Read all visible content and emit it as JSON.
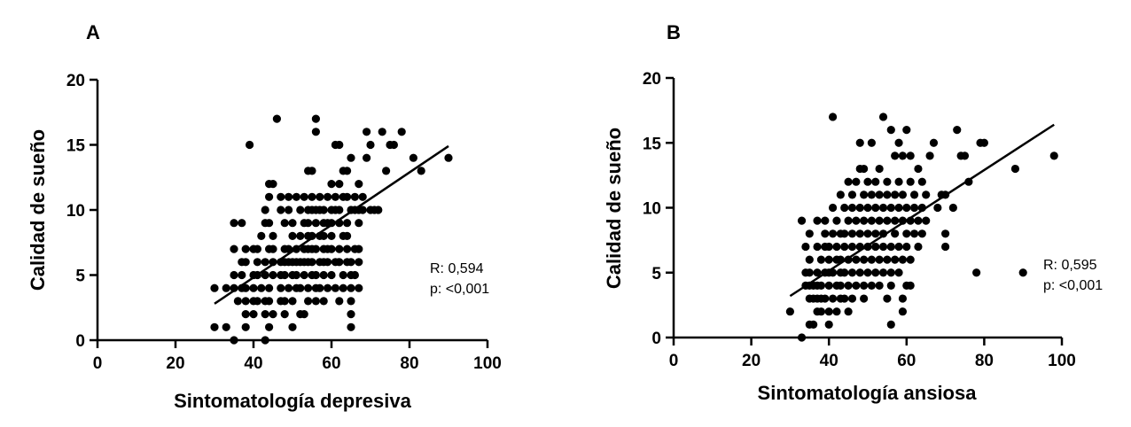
{
  "chart_data": [
    {
      "type": "scatter",
      "panel": "A",
      "xlabel": "Sintomatología depresiva",
      "ylabel": "Calidad de sueño",
      "xlim": [
        0,
        100
      ],
      "ylim": [
        0,
        20
      ],
      "xticks": [
        "0",
        "20",
        "40",
        "60",
        "80",
        "100"
      ],
      "yticks": [
        "0",
        "5",
        "10",
        "15",
        "20"
      ],
      "annotations": [
        "R: 0,594",
        "p: <0,001"
      ],
      "regression_line": {
        "x": [
          30,
          90
        ],
        "y": [
          2.8,
          14.9
        ]
      },
      "points": [
        [
          30,
          1
        ],
        [
          30,
          4
        ],
        [
          33,
          1
        ],
        [
          33,
          4
        ],
        [
          35,
          0
        ],
        [
          35,
          4
        ],
        [
          35,
          5
        ],
        [
          35,
          7
        ],
        [
          35,
          9
        ],
        [
          36,
          3
        ],
        [
          37,
          4
        ],
        [
          37,
          5
        ],
        [
          37,
          6
        ],
        [
          37,
          9
        ],
        [
          38,
          1
        ],
        [
          38,
          2
        ],
        [
          38,
          3
        ],
        [
          38,
          4
        ],
        [
          38,
          6
        ],
        [
          38,
          7
        ],
        [
          39,
          15
        ],
        [
          40,
          2
        ],
        [
          40,
          3
        ],
        [
          40,
          4
        ],
        [
          40,
          5
        ],
        [
          40,
          7
        ],
        [
          41,
          3
        ],
        [
          41,
          5
        ],
        [
          41,
          6
        ],
        [
          41,
          7
        ],
        [
          42,
          4
        ],
        [
          42,
          8
        ],
        [
          43,
          0
        ],
        [
          43,
          2
        ],
        [
          43,
          3
        ],
        [
          43,
          5
        ],
        [
          43,
          6
        ],
        [
          43,
          9
        ],
        [
          43,
          10
        ],
        [
          44,
          1
        ],
        [
          44,
          3
        ],
        [
          44,
          4
        ],
        [
          44,
          7
        ],
        [
          44,
          9
        ],
        [
          44,
          11
        ],
        [
          44,
          12
        ],
        [
          45,
          2
        ],
        [
          45,
          5
        ],
        [
          45,
          6
        ],
        [
          45,
          7
        ],
        [
          45,
          8
        ],
        [
          45,
          12
        ],
        [
          46,
          17
        ],
        [
          47,
          3
        ],
        [
          47,
          4
        ],
        [
          47,
          5
        ],
        [
          47,
          6
        ],
        [
          47,
          10
        ],
        [
          47,
          11
        ],
        [
          48,
          2
        ],
        [
          48,
          3
        ],
        [
          48,
          5
        ],
        [
          48,
          6
        ],
        [
          48,
          7
        ],
        [
          48,
          9
        ],
        [
          49,
          4
        ],
        [
          49,
          6
        ],
        [
          49,
          7
        ],
        [
          49,
          10
        ],
        [
          49,
          11
        ],
        [
          50,
          1
        ],
        [
          50,
          3
        ],
        [
          50,
          5
        ],
        [
          50,
          6
        ],
        [
          50,
          8
        ],
        [
          50,
          9
        ],
        [
          51,
          4
        ],
        [
          51,
          5
        ],
        [
          51,
          6
        ],
        [
          51,
          7
        ],
        [
          51,
          11
        ],
        [
          52,
          2
        ],
        [
          52,
          4
        ],
        [
          52,
          6
        ],
        [
          52,
          8
        ],
        [
          52,
          10
        ],
        [
          53,
          2
        ],
        [
          53,
          5
        ],
        [
          53,
          6
        ],
        [
          53,
          7
        ],
        [
          53,
          9
        ],
        [
          53,
          11
        ],
        [
          54,
          3
        ],
        [
          54,
          4
        ],
        [
          54,
          6
        ],
        [
          54,
          7
        ],
        [
          54,
          8
        ],
        [
          54,
          9
        ],
        [
          54,
          10
        ],
        [
          54,
          13
        ],
        [
          55,
          5
        ],
        [
          55,
          6
        ],
        [
          55,
          7
        ],
        [
          55,
          8
        ],
        [
          55,
          10
        ],
        [
          55,
          11
        ],
        [
          55,
          13
        ],
        [
          56,
          3
        ],
        [
          56,
          4
        ],
        [
          56,
          5
        ],
        [
          56,
          7
        ],
        [
          56,
          9
        ],
        [
          56,
          10
        ],
        [
          56,
          16
        ],
        [
          56,
          17
        ],
        [
          57,
          4
        ],
        [
          57,
          6
        ],
        [
          57,
          8
        ],
        [
          57,
          10
        ],
        [
          57,
          11
        ],
        [
          58,
          3
        ],
        [
          58,
          5
        ],
        [
          58,
          6
        ],
        [
          58,
          7
        ],
        [
          58,
          8
        ],
        [
          58,
          9
        ],
        [
          58,
          10
        ],
        [
          59,
          4
        ],
        [
          59,
          6
        ],
        [
          59,
          7
        ],
        [
          59,
          9
        ],
        [
          59,
          11
        ],
        [
          60,
          5
        ],
        [
          60,
          7
        ],
        [
          60,
          8
        ],
        [
          60,
          9
        ],
        [
          60,
          10
        ],
        [
          60,
          12
        ],
        [
          61,
          4
        ],
        [
          61,
          6
        ],
        [
          61,
          10
        ],
        [
          61,
          11
        ],
        [
          61,
          15
        ],
        [
          62,
          3
        ],
        [
          62,
          6
        ],
        [
          62,
          7
        ],
        [
          62,
          9
        ],
        [
          62,
          10
        ],
        [
          62,
          12
        ],
        [
          62,
          15
        ],
        [
          63,
          4
        ],
        [
          63,
          5
        ],
        [
          63,
          8
        ],
        [
          63,
          11
        ],
        [
          63,
          13
        ],
        [
          64,
          6
        ],
        [
          64,
          7
        ],
        [
          64,
          8
        ],
        [
          64,
          9
        ],
        [
          64,
          11
        ],
        [
          64,
          13
        ],
        [
          65,
          1
        ],
        [
          65,
          2
        ],
        [
          65,
          3
        ],
        [
          65,
          4
        ],
        [
          65,
          5
        ],
        [
          65,
          6
        ],
        [
          65,
          10
        ],
        [
          65,
          14
        ],
        [
          66,
          5
        ],
        [
          66,
          7
        ],
        [
          66,
          10
        ],
        [
          66,
          11
        ],
        [
          67,
          4
        ],
        [
          67,
          6
        ],
        [
          67,
          7
        ],
        [
          67,
          9
        ],
        [
          67,
          10
        ],
        [
          67,
          12
        ],
        [
          68,
          10
        ],
        [
          68,
          11
        ],
        [
          69,
          14
        ],
        [
          69,
          16
        ],
        [
          70,
          10
        ],
        [
          70,
          15
        ],
        [
          71,
          10
        ],
        [
          72,
          10
        ],
        [
          73,
          16
        ],
        [
          74,
          13
        ],
        [
          75,
          15
        ],
        [
          76,
          15
        ],
        [
          78,
          16
        ],
        [
          81,
          14
        ],
        [
          83,
          13
        ],
        [
          90,
          14
        ]
      ]
    },
    {
      "type": "scatter",
      "panel": "B",
      "xlabel": "Sintomatología ansiosa",
      "ylabel": "Calidad de sueño",
      "xlim": [
        0,
        100
      ],
      "ylim": [
        0,
        20
      ],
      "xticks": [
        "0",
        "20",
        "40",
        "60",
        "80",
        "100"
      ],
      "yticks": [
        "0",
        "5",
        "10",
        "15",
        "20"
      ],
      "annotations": [
        "R: 0,595",
        "p: <0,001"
      ],
      "regression_line": {
        "x": [
          30,
          98
        ],
        "y": [
          3.2,
          16.4
        ]
      },
      "points": [
        [
          30,
          2
        ],
        [
          33,
          0
        ],
        [
          33,
          9
        ],
        [
          34,
          4
        ],
        [
          34,
          5
        ],
        [
          34,
          7
        ],
        [
          35,
          3
        ],
        [
          35,
          4
        ],
        [
          35,
          5
        ],
        [
          35,
          6
        ],
        [
          35,
          8
        ],
        [
          35,
          1
        ],
        [
          36,
          1
        ],
        [
          36,
          3
        ],
        [
          36,
          4
        ],
        [
          37,
          2
        ],
        [
          37,
          3
        ],
        [
          37,
          4
        ],
        [
          37,
          5
        ],
        [
          37,
          7
        ],
        [
          37,
          9
        ],
        [
          38,
          2
        ],
        [
          38,
          3
        ],
        [
          38,
          4
        ],
        [
          38,
          6
        ],
        [
          39,
          3
        ],
        [
          39,
          5
        ],
        [
          39,
          7
        ],
        [
          39,
          8
        ],
        [
          39,
          9
        ],
        [
          40,
          1
        ],
        [
          40,
          2
        ],
        [
          40,
          4
        ],
        [
          40,
          5
        ],
        [
          40,
          6
        ],
        [
          40,
          7
        ],
        [
          41,
          17
        ],
        [
          41,
          3
        ],
        [
          41,
          5
        ],
        [
          41,
          8
        ],
        [
          41,
          10
        ],
        [
          42,
          2
        ],
        [
          42,
          4
        ],
        [
          42,
          6
        ],
        [
          42,
          7
        ],
        [
          42,
          9
        ],
        [
          43,
          3
        ],
        [
          43,
          4
        ],
        [
          43,
          5
        ],
        [
          43,
          6
        ],
        [
          43,
          8
        ],
        [
          43,
          11
        ],
        [
          44,
          3
        ],
        [
          44,
          5
        ],
        [
          44,
          7
        ],
        [
          44,
          8
        ],
        [
          44,
          10
        ],
        [
          45,
          2
        ],
        [
          45,
          4
        ],
        [
          45,
          6
        ],
        [
          45,
          9
        ],
        [
          45,
          12
        ],
        [
          46,
          3
        ],
        [
          46,
          5
        ],
        [
          46,
          7
        ],
        [
          46,
          8
        ],
        [
          46,
          10
        ],
        [
          46,
          11
        ],
        [
          47,
          4
        ],
        [
          47,
          6
        ],
        [
          47,
          9
        ],
        [
          47,
          12
        ],
        [
          48,
          5
        ],
        [
          48,
          7
        ],
        [
          48,
          8
        ],
        [
          48,
          10
        ],
        [
          48,
          13
        ],
        [
          48,
          15
        ],
        [
          49,
          3
        ],
        [
          49,
          4
        ],
        [
          49,
          6
        ],
        [
          49,
          9
        ],
        [
          49,
          11
        ],
        [
          49,
          13
        ],
        [
          50,
          5
        ],
        [
          50,
          7
        ],
        [
          50,
          8
        ],
        [
          50,
          10
        ],
        [
          50,
          12
        ],
        [
          51,
          4
        ],
        [
          51,
          6
        ],
        [
          51,
          9
        ],
        [
          51,
          11
        ],
        [
          51,
          15
        ],
        [
          52,
          5
        ],
        [
          52,
          7
        ],
        [
          52,
          8
        ],
        [
          52,
          10
        ],
        [
          52,
          12
        ],
        [
          53,
          4
        ],
        [
          53,
          6
        ],
        [
          53,
          9
        ],
        [
          53,
          11
        ],
        [
          53,
          13
        ],
        [
          54,
          17
        ],
        [
          54,
          5
        ],
        [
          54,
          7
        ],
        [
          54,
          8
        ],
        [
          54,
          10
        ],
        [
          55,
          3
        ],
        [
          55,
          6
        ],
        [
          55,
          9
        ],
        [
          55,
          11
        ],
        [
          55,
          12
        ],
        [
          56,
          1
        ],
        [
          56,
          4
        ],
        [
          56,
          5
        ],
        [
          56,
          7
        ],
        [
          56,
          10
        ],
        [
          56,
          16
        ],
        [
          57,
          6
        ],
        [
          57,
          8
        ],
        [
          57,
          9
        ],
        [
          57,
          11
        ],
        [
          57,
          14
        ],
        [
          58,
          5
        ],
        [
          58,
          7
        ],
        [
          58,
          10
        ],
        [
          58,
          12
        ],
        [
          58,
          15
        ],
        [
          59,
          2
        ],
        [
          59,
          3
        ],
        [
          59,
          6
        ],
        [
          59,
          9
        ],
        [
          59,
          11
        ],
        [
          59,
          14
        ],
        [
          60,
          4
        ],
        [
          60,
          7
        ],
        [
          60,
          8
        ],
        [
          60,
          10
        ],
        [
          60,
          16
        ],
        [
          61,
          4
        ],
        [
          61,
          6
        ],
        [
          61,
          9
        ],
        [
          61,
          12
        ],
        [
          61,
          14
        ],
        [
          62,
          8
        ],
        [
          62,
          10
        ],
        [
          62,
          11
        ],
        [
          63,
          7
        ],
        [
          63,
          9
        ],
        [
          63,
          13
        ],
        [
          64,
          8
        ],
        [
          64,
          10
        ],
        [
          64,
          12
        ],
        [
          65,
          9
        ],
        [
          65,
          11
        ],
        [
          66,
          14
        ],
        [
          67,
          15
        ],
        [
          68,
          10
        ],
        [
          69,
          11
        ],
        [
          70,
          7
        ],
        [
          70,
          8
        ],
        [
          70,
          11
        ],
        [
          72,
          10
        ],
        [
          73,
          16
        ],
        [
          74,
          14
        ],
        [
          75,
          14
        ],
        [
          76,
          12
        ],
        [
          78,
          5
        ],
        [
          79,
          15
        ],
        [
          80,
          15
        ],
        [
          88,
          13
        ],
        [
          90,
          5
        ],
        [
          98,
          14
        ]
      ]
    }
  ]
}
